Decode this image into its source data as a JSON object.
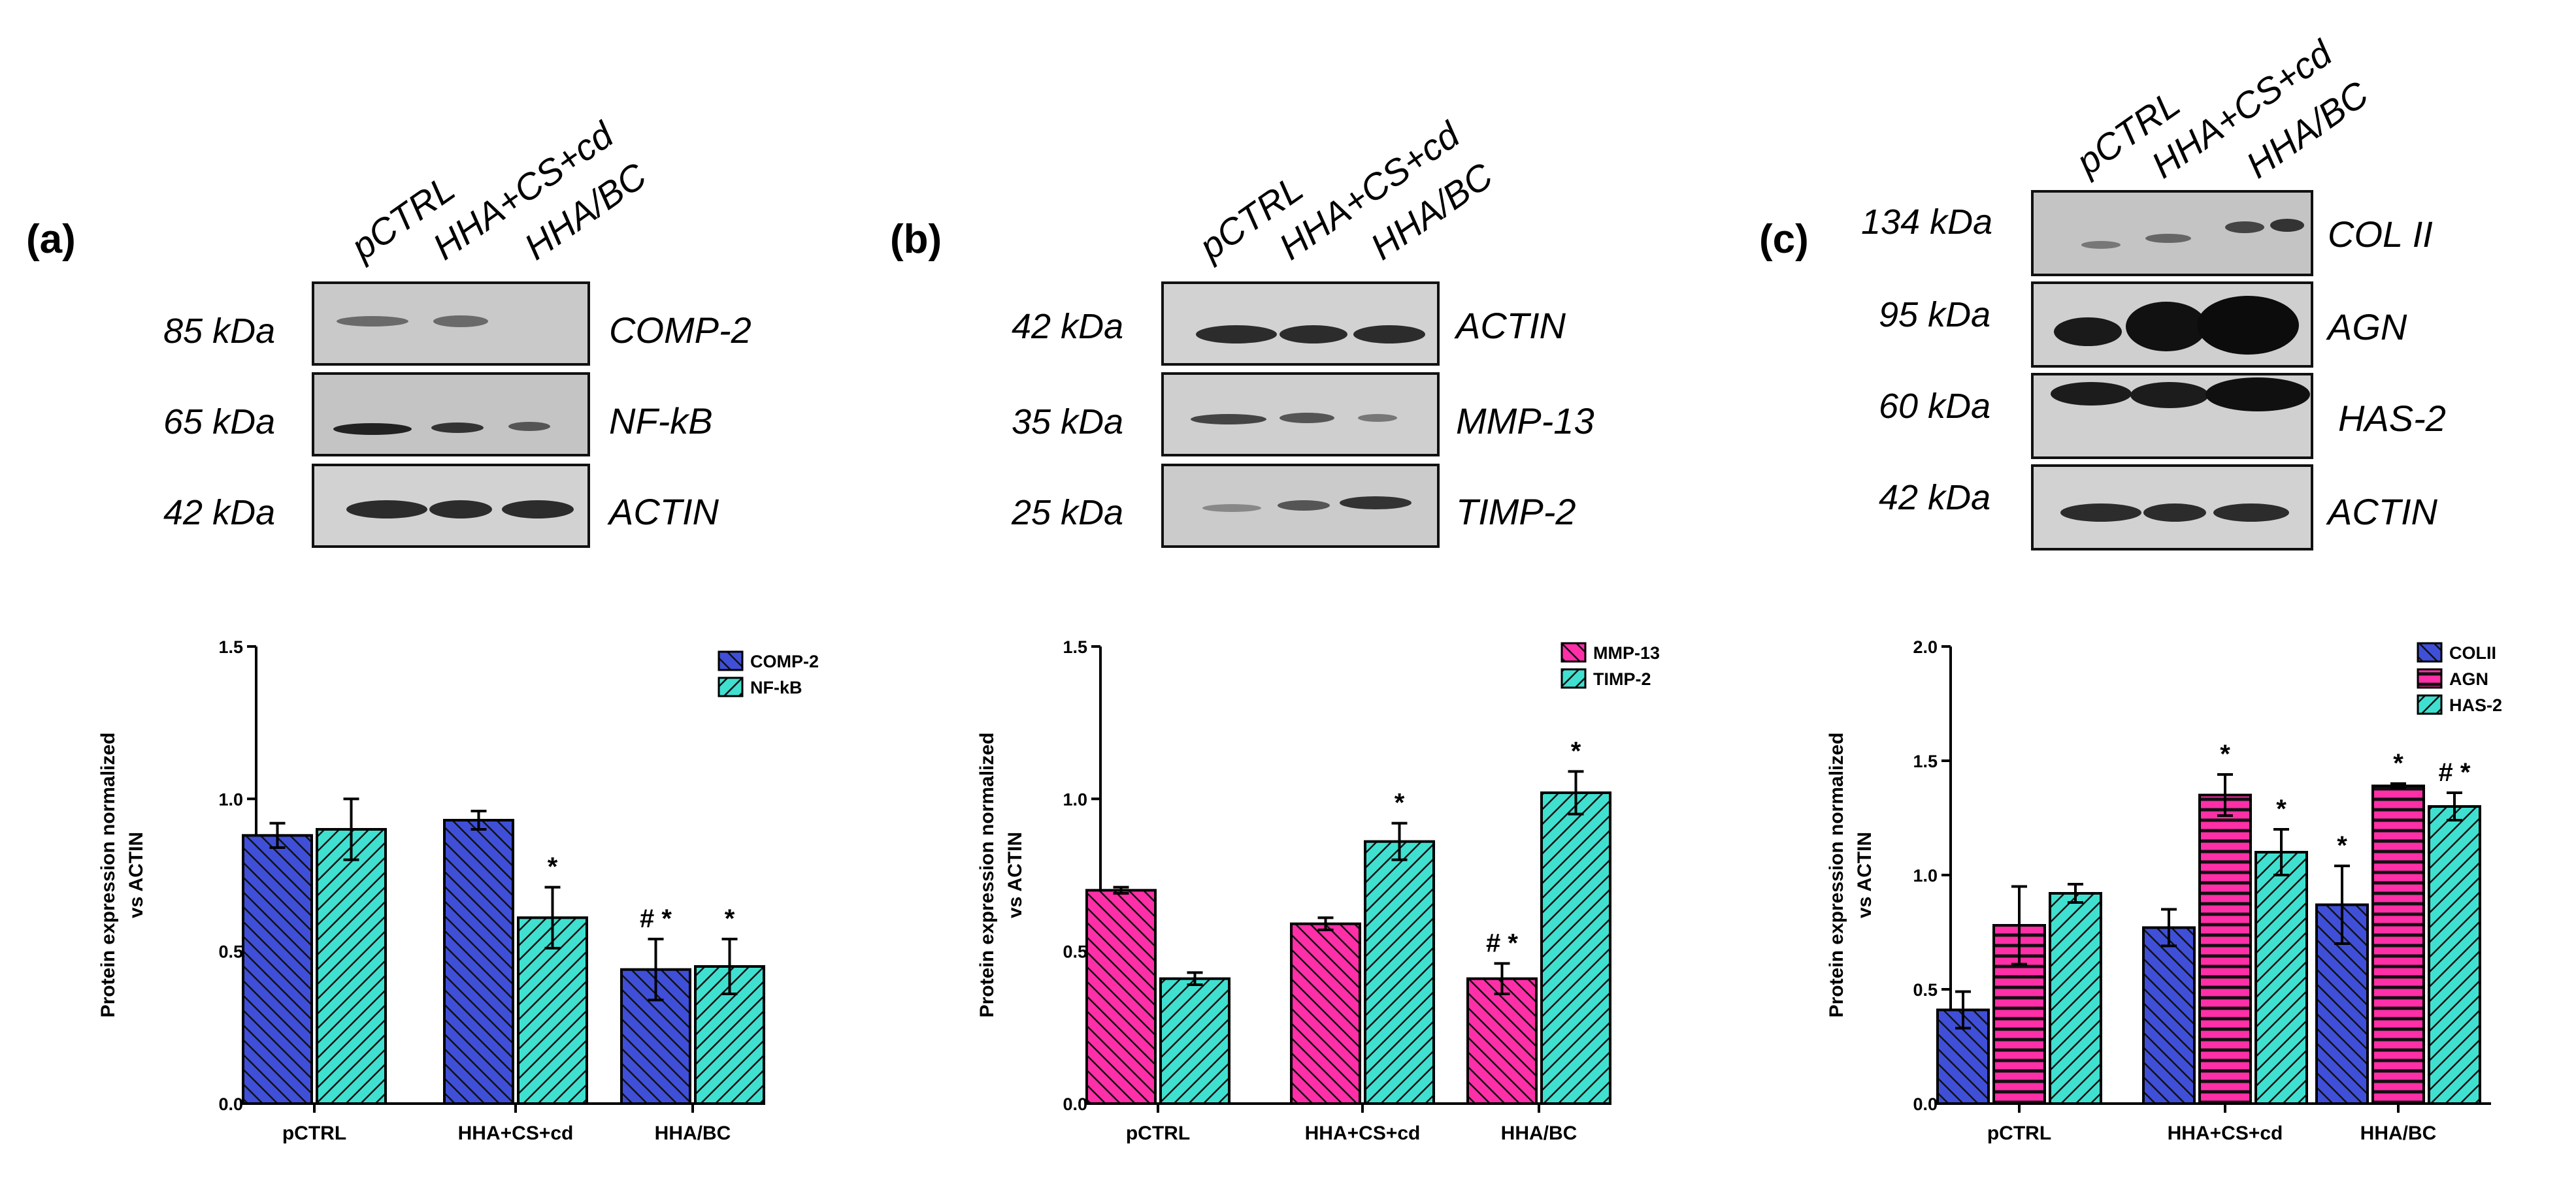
{
  "panels": [
    {
      "label": "(a)",
      "lanes": [
        "pCTRL",
        "HHA+CS+cd",
        "HHA/BC"
      ],
      "blots": [
        {
          "kda": "85 kDa",
          "protein": "COMP-2"
        },
        {
          "kda": "65 kDa",
          "protein": "NF-kB"
        },
        {
          "kda": "42 kDa",
          "protein": "ACTIN"
        }
      ]
    },
    {
      "label": "(b)",
      "lanes": [
        "pCTRL",
        "HHA+CS+cd",
        "HHA/BC"
      ],
      "blots": [
        {
          "kda": "42 kDa",
          "protein": "ACTIN"
        },
        {
          "kda": "35 kDa",
          "protein": "MMP-13"
        },
        {
          "kda": "25 kDa",
          "protein": "TIMP-2"
        }
      ]
    },
    {
      "label": "(c)",
      "lanes": [
        "pCTRL",
        "HHA+CS+cd",
        "HHA/BC"
      ],
      "blots": [
        {
          "kda": "134 kDa",
          "protein": "COL II"
        },
        {
          "kda": "95 kDa",
          "protein": "AGN"
        },
        {
          "kda": "60 kDa",
          "protein": "HAS-2"
        },
        {
          "kda": "42 kDa",
          "protein": "ACTIN"
        }
      ]
    }
  ],
  "chart_data": [
    {
      "type": "bar",
      "categories": [
        "pCTRL",
        "HHA+CS+cd",
        "HHA/BC"
      ],
      "ylabel": "Protein expression normalized vs ACTIN",
      "ylabel_lines": [
        "Protein expression normalized",
        "vs ACTIN"
      ],
      "ylim": [
        0,
        1.5
      ],
      "yticks": [
        "0.0",
        "0.5",
        "1.0",
        "1.5"
      ],
      "legend_position": "top-right",
      "series": [
        {
          "name": "COMP-2",
          "color": "#3f4fd8",
          "pattern": "diag",
          "values": [
            0.88,
            0.93,
            0.44
          ],
          "errors": [
            0.04,
            0.03,
            0.1
          ],
          "marks": [
            "",
            "",
            "# *"
          ]
        },
        {
          "name": "NF-kB",
          "color": "#40e0d0",
          "pattern": "diag",
          "values": [
            0.9,
            0.61,
            0.45
          ],
          "errors": [
            0.1,
            0.1,
            0.09
          ],
          "marks": [
            "",
            "*",
            "*"
          ]
        }
      ]
    },
    {
      "type": "bar",
      "categories": [
        "pCTRL",
        "HHA+CS+cd",
        "HHA/BC"
      ],
      "ylabel": "Protein expression normalized vs ACTIN",
      "ylabel_lines": [
        "Protein expression normalized",
        "vs ACTIN"
      ],
      "ylim": [
        0,
        1.5
      ],
      "yticks": [
        "0.0",
        "0.5",
        "1.0",
        "1.5"
      ],
      "legend_position": "top-right",
      "series": [
        {
          "name": "MMP-13",
          "color": "#ff2fa8",
          "pattern": "diag",
          "values": [
            0.7,
            0.59,
            0.41
          ],
          "errors": [
            0.01,
            0.02,
            0.05
          ],
          "marks": [
            "",
            "",
            "# *"
          ]
        },
        {
          "name": "TIMP-2",
          "color": "#40e0d0",
          "pattern": "diag",
          "values": [
            0.41,
            0.86,
            1.02
          ],
          "errors": [
            0.02,
            0.06,
            0.07
          ],
          "marks": [
            "",
            "*",
            "*"
          ]
        }
      ]
    },
    {
      "type": "bar",
      "categories": [
        "pCTRL",
        "HHA+CS+cd",
        "HHA/BC"
      ],
      "ylabel": "Protein expression normalized vs ACTIN",
      "ylabel_lines": [
        "Protein expression normalized",
        "vs ACTIN"
      ],
      "ylim": [
        0,
        2.0
      ],
      "yticks": [
        "0.0",
        "0.5",
        "1.0",
        "1.5",
        "2.0"
      ],
      "legend_position": "top-right",
      "series": [
        {
          "name": "COLII",
          "color": "#3f4fd8",
          "pattern": "diag",
          "values": [
            0.41,
            0.77,
            0.87
          ],
          "errors": [
            0.08,
            0.08,
            0.17
          ],
          "marks": [
            "",
            "",
            "*"
          ]
        },
        {
          "name": "AGN",
          "color": "#ff2fa8",
          "pattern": "horiz",
          "values": [
            0.78,
            1.35,
            1.39
          ],
          "errors": [
            0.17,
            0.09,
            0.01
          ],
          "marks": [
            "",
            "*",
            "*"
          ]
        },
        {
          "name": "HAS-2",
          "color": "#40e0d0",
          "pattern": "diag",
          "values": [
            0.92,
            1.1,
            1.3
          ],
          "errors": [
            0.04,
            0.1,
            0.06
          ],
          "marks": [
            "",
            "*",
            "# *"
          ]
        }
      ]
    }
  ]
}
